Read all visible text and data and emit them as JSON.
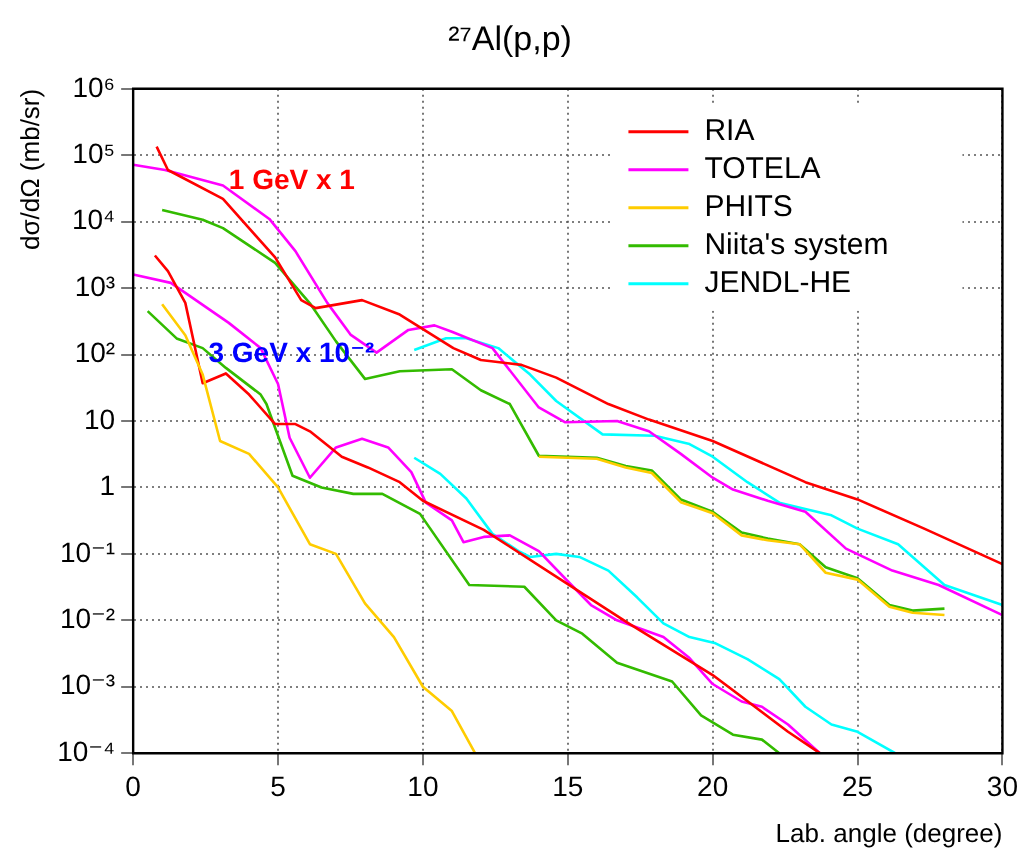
{
  "chart_data": {
    "type": "line",
    "title": "²⁷Al(p,p)",
    "xlabel": "Lab. angle (degree)",
    "ylabel": "dσ/dΩ (mb/sr)",
    "xlim": [
      0,
      30
    ],
    "xticks": [
      0,
      5,
      10,
      15,
      20,
      25,
      30
    ],
    "ylim": [
      0.0001,
      1000000
    ],
    "yticks": [
      {
        "value": 1000000,
        "label": "10⁶"
      },
      {
        "value": 100000,
        "label": "10⁵"
      },
      {
        "value": 10000,
        "label": "10⁴"
      },
      {
        "value": 1000,
        "label": "10³"
      },
      {
        "value": 100,
        "label": "10²"
      },
      {
        "value": 10,
        "label": "10"
      },
      {
        "value": 1,
        "label": "1"
      },
      {
        "value": 0.1,
        "label": "10⁻¹"
      },
      {
        "value": 0.01,
        "label": "10⁻²"
      },
      {
        "value": 0.001,
        "label": "10⁻³"
      },
      {
        "value": 0.0001,
        "label": "10⁻⁴"
      }
    ],
    "log": "y",
    "grid": true,
    "legend": "top right",
    "marker": "none",
    "line_style": "solid",
    "annotations": [
      {
        "text": "1 GeV x 1",
        "x": 3.3,
        "y": 40000
      },
      {
        "text": "3 GeV x 10⁻²",
        "x": 2.6,
        "y": 100
      }
    ],
    "series": [
      {
        "name": "RIA",
        "color": "#ff0000",
        "x": [
          0.81,
          1.2,
          3.1,
          4.9,
          5.8,
          6.3,
          7.9,
          9.2,
          11.05,
          12,
          13.4,
          14.6,
          16.4,
          17.8,
          20,
          23.2,
          25,
          27.3,
          30
        ],
        "values": [
          135000,
          60000,
          22000,
          2900,
          660,
          500,
          660,
          400,
          125,
          83,
          70,
          45,
          18,
          10.5,
          5,
          1.2,
          0.66,
          0.24,
          0.07
        ]
      },
      {
        "name": "TOTELA",
        "color": "#ff00ff",
        "x": [
          0,
          1.1,
          3.1,
          4.7,
          5.6,
          6.7,
          7.5,
          8.4,
          9.5,
          10.4,
          11,
          12.4,
          14,
          14.9,
          16.7,
          17.8,
          18.9,
          20,
          20.7,
          21.9,
          23.2,
          24.6,
          26.2,
          27.8,
          30
        ],
        "values": [
          72000,
          60000,
          35000,
          11000,
          3600,
          600,
          200,
          107,
          235,
          275,
          220,
          125,
          16,
          9.6,
          10,
          7,
          3.2,
          1.4,
          0.93,
          0.63,
          0.43,
          0.12,
          0.056,
          0.034,
          0.012
        ]
      },
      {
        "name": "PHITS",
        "color": "#ffcc00",
        "x": [
          1,
          1.8,
          2.4,
          3,
          4,
          5,
          6.1,
          7,
          8,
          9,
          10,
          11,
          11.8
        ],
        "values": [
          570,
          195,
          50,
          5,
          3.2,
          1,
          0.14,
          0.1,
          0.018,
          0.0056,
          0.001,
          0.00043,
          0.0001
        ]
      },
      {
        "color": "#ffcc00",
        "x": [
          14,
          16,
          17,
          17.9,
          18.9,
          20,
          21,
          21.9,
          23,
          23.9,
          25,
          26.1,
          26.9,
          28
        ],
        "values": [
          2.9,
          2.7,
          2.0,
          1.65,
          0.6,
          0.41,
          0.19,
          0.16,
          0.14,
          0.052,
          0.041,
          0.016,
          0.013,
          0.012
        ]
      },
      {
        "name": "Niita's system",
        "color": "#33bb00",
        "x": [
          1,
          2.4,
          3.1,
          4.9,
          6.1,
          7,
          8,
          9.2,
          11,
          12,
          13,
          14,
          16,
          17,
          17.9,
          18.9,
          20,
          21,
          21.9,
          23,
          23.9,
          25,
          26.1,
          26.9,
          28
        ],
        "values": [
          15000,
          10700,
          8000,
          2400,
          590,
          158,
          43,
          56,
          60,
          29,
          18,
          3,
          2.8,
          2.1,
          1.8,
          0.66,
          0.43,
          0.21,
          0.17,
          0.14,
          0.063,
          0.043,
          0.017,
          0.014,
          0.015
        ]
      },
      {
        "name": "JENDL-HE",
        "color": "#00ffff",
        "x": [
          9.7,
          10.8,
          11.5,
          12.6,
          13.7,
          14.6,
          16.2,
          18,
          19.2,
          20,
          21.2,
          22.3,
          24.1,
          25,
          26.4,
          28,
          30
        ],
        "values": [
          117,
          176,
          176,
          125,
          50,
          20,
          6.3,
          6,
          4.5,
          2.9,
          1.2,
          0.59,
          0.38,
          0.24,
          0.14,
          0.034,
          0.017
        ]
      },
      {
        "color": "#ff0000",
        "x": [
          0.75,
          1.2,
          1.8,
          2.4,
          3.2,
          4,
          4.9,
          5.6,
          6.1,
          7.2,
          8.1,
          9.2,
          10,
          12.1,
          15,
          17.1,
          20,
          22.6,
          23.7
        ],
        "values": [
          3100,
          1800,
          600,
          37,
          52,
          25,
          9,
          9,
          7,
          2.9,
          2,
          1.2,
          0.63,
          0.23,
          0.035,
          0.009,
          0.0015,
          0.00021,
          0.0001
        ]
      },
      {
        "color": "#ff00ff",
        "x": [
          0,
          1.3,
          2.4,
          3.3,
          4.4,
          5,
          5.4,
          6.1,
          7,
          7.9,
          8.8,
          9.6,
          10.1,
          11,
          11.4,
          12.1,
          13,
          14,
          14.9,
          15.8,
          16.7,
          18.3,
          19.2,
          20,
          21,
          21.7,
          22.6,
          23.7
        ],
        "values": [
          1600,
          1200,
          560,
          300,
          125,
          36,
          5.6,
          1.4,
          4,
          5.4,
          4,
          1.7,
          0.59,
          0.32,
          0.15,
          0.18,
          0.19,
          0.11,
          0.043,
          0.017,
          0.01,
          0.0056,
          0.0027,
          0.0011,
          0.0006,
          0.0005,
          0.00027,
          0.0001
        ]
      },
      {
        "color": "#33bb00",
        "x": [
          0.5,
          1.5,
          2.4,
          3.2,
          4.4,
          4.6,
          5.5,
          6.5,
          7.6,
          8.6,
          9.9,
          11.6,
          13.5,
          14.6,
          15.5,
          16.7,
          18.6,
          19.6,
          20.7,
          21.7,
          22.3
        ],
        "values": [
          450,
          175,
          125,
          63,
          25,
          18,
          1.5,
          1,
          0.8,
          0.8,
          0.4,
          0.034,
          0.032,
          0.01,
          0.0063,
          0.0023,
          0.0012,
          0.00037,
          0.00019,
          0.00016,
          0.0001
        ]
      },
      {
        "color": "#00ffff",
        "x": [
          9.7,
          10.6,
          11.5,
          12.4,
          13.3,
          13.7,
          14.6,
          15.4,
          16.4,
          17.4,
          18.3,
          19.2,
          20.1,
          21.2,
          22.3,
          23.2,
          24.1,
          25,
          26.3
        ],
        "values": [
          2.8,
          1.6,
          0.68,
          0.2,
          0.11,
          0.09,
          0.1,
          0.09,
          0.056,
          0.022,
          0.009,
          0.0056,
          0.0045,
          0.0026,
          0.0013,
          0.0005,
          0.00027,
          0.00021,
          0.0001
        ]
      }
    ]
  }
}
